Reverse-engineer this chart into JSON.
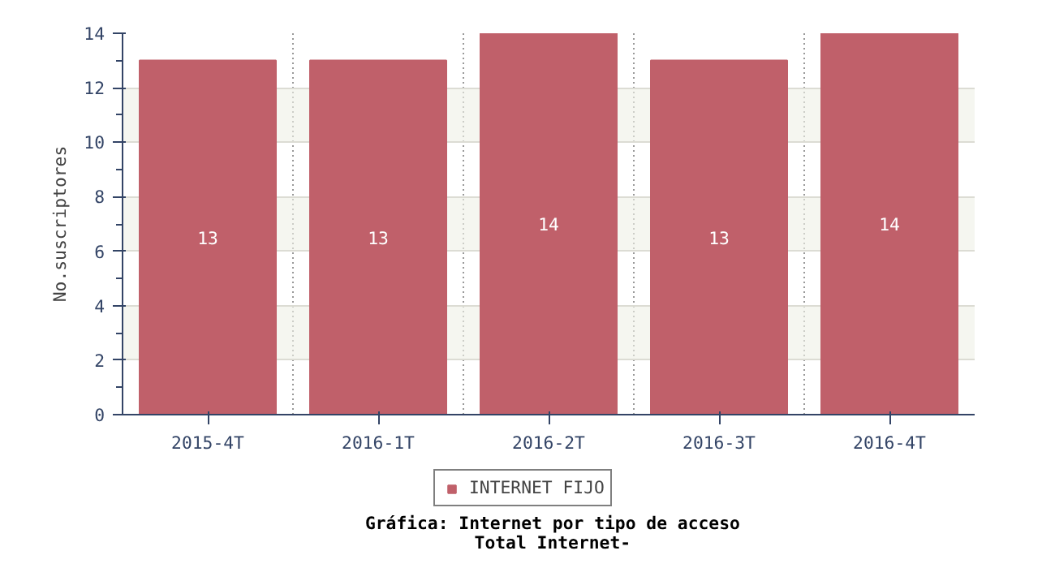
{
  "chart_data": {
    "type": "bar",
    "title": "Gráfica: Internet por tipo de acceso",
    "subtitle": "Total Internet-",
    "ylabel": "No.suscriptores",
    "categories": [
      "2015-4T",
      "2016-1T",
      "2016-2T",
      "2016-3T",
      "2016-4T"
    ],
    "series": [
      {
        "name": "INTERNET FIJO",
        "color": "#c0606a",
        "values": [
          13,
          13,
          14,
          13,
          14
        ]
      }
    ],
    "ylim": [
      0,
      14
    ],
    "yticks": [
      0,
      2,
      4,
      6,
      8,
      10,
      12,
      14
    ],
    "grid": true,
    "legend": "bottom",
    "data_labels": true
  }
}
